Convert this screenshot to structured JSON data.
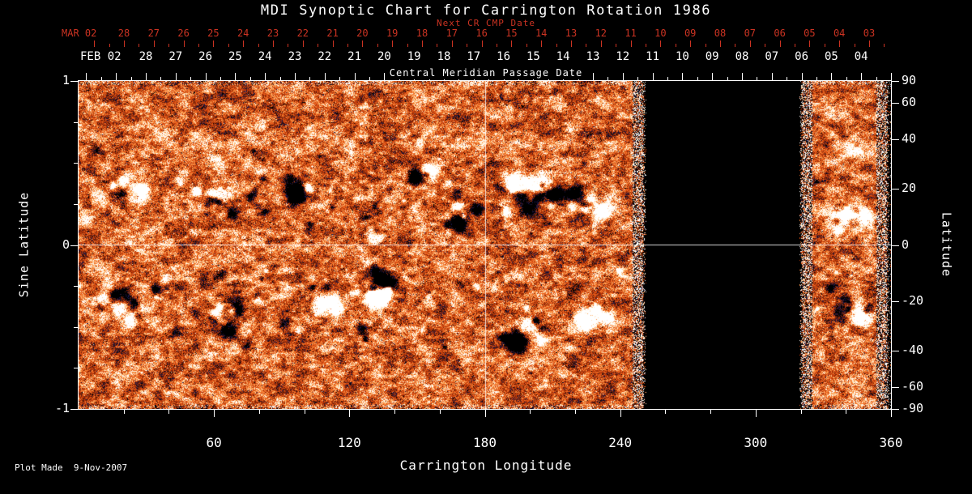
{
  "title": "MDI Synoptic Chart for Carrington Rotation 1986",
  "footer": {
    "plot_made": "Plot Made  9-Nov-2007"
  },
  "colors": {
    "background": "#000000",
    "foreground": "#ffffff",
    "secondary_axis_red": "#cc3322"
  },
  "chart_data": {
    "type": "heatmap",
    "title": "MDI Synoptic Chart for Carrington Rotation 1986",
    "description": "Solar photospheric magnetic field synoptic map for Carrington rotation 1986; mottled orange/red background with bright white positive-polarity and black/blue negative-polarity active regions; black vertical bands are missing data.",
    "xlabel": "Carrington Longitude",
    "x_range": [
      0,
      360
    ],
    "x_ticks": [
      "60",
      "120",
      "180",
      "240",
      "300",
      "360"
    ],
    "x_tick_values": [
      60,
      120,
      180,
      240,
      300,
      360
    ],
    "x_minor_step_deg": 20,
    "ylabel_left": "Sine Latitude",
    "y_left_ticks": [
      "1",
      "0",
      "-1"
    ],
    "y_left_values": [
      1,
      0,
      -1
    ],
    "y_left_minor_values": [
      0.75,
      0.5,
      0.25,
      -0.25,
      -0.5,
      -0.75
    ],
    "ylabel_right": "Latitude",
    "y_right_ticks": [
      "90",
      "60",
      "40",
      "20",
      "0",
      "-20",
      "-40",
      "-60",
      "-90"
    ],
    "y_right_values": [
      90,
      60,
      40,
      20,
      0,
      -20,
      -40,
      -60,
      -90
    ],
    "top_axis": {
      "label": "Next CR CMP Date",
      "month_label": "MAR 02",
      "day_ticks": [
        "28",
        "27",
        "26",
        "25",
        "24",
        "23",
        "22",
        "21",
        "20",
        "19",
        "18",
        "17",
        "16",
        "15",
        "14",
        "13",
        "12",
        "11",
        "10",
        "09",
        "08",
        "07",
        "06",
        "05",
        "04",
        "03"
      ]
    },
    "cmp_axis": {
      "label": "Central Meridian Passage Date",
      "month_label": "FEB 02",
      "day_ticks": [
        "28",
        "27",
        "26",
        "25",
        "24",
        "23",
        "22",
        "21",
        "20",
        "19",
        "18",
        "17",
        "16",
        "15",
        "14",
        "13",
        "12",
        "11",
        "10",
        "09",
        "08",
        "07",
        "06",
        "05",
        "04"
      ]
    },
    "reference_lines": {
      "longitude": 180,
      "sine_latitude": 0
    },
    "data_gaps_longitude_deg": [
      [
        250.5,
        320
      ],
      [
        358.5,
        360
      ]
    ],
    "active_regions": [
      {
        "lon": 19,
        "sin_lat": 0.33,
        "spread": 50,
        "blobs": 10,
        "size": 6,
        "white_fraction": 0.5
      },
      {
        "lon": 58,
        "sin_lat": 0.27,
        "spread": 55,
        "blobs": 12,
        "size": 6,
        "white_fraction": 0.55
      },
      {
        "lon": 99,
        "sin_lat": 0.31,
        "spread": 35,
        "blobs": 6,
        "size": 5,
        "white_fraction": 0.3
      },
      {
        "lon": 133,
        "sin_lat": 0.07,
        "spread": 25,
        "blobs": 4,
        "size": 5,
        "white_fraction": 0.8
      },
      {
        "lon": 152,
        "sin_lat": 0.45,
        "spread": 30,
        "blobs": 5,
        "size": 4,
        "white_fraction": 0.6
      },
      {
        "lon": 170,
        "sin_lat": 0.18,
        "spread": 40,
        "blobs": 6,
        "size": 5,
        "white_fraction": 0.4
      },
      {
        "lon": 199,
        "sin_lat": 0.3,
        "spread": 70,
        "blobs": 14,
        "size": 7,
        "white_fraction": 0.5
      },
      {
        "lon": 227,
        "sin_lat": 0.25,
        "spread": 45,
        "blobs": 9,
        "size": 6,
        "white_fraction": 0.7
      },
      {
        "lon": 19,
        "sin_lat": -0.38,
        "spread": 60,
        "blobs": 13,
        "size": 7,
        "white_fraction": 0.55
      },
      {
        "lon": 64,
        "sin_lat": -0.45,
        "spread": 55,
        "blobs": 10,
        "size": 6,
        "white_fraction": 0.6
      },
      {
        "lon": 110,
        "sin_lat": -0.32,
        "spread": 45,
        "blobs": 8,
        "size": 6,
        "white_fraction": 0.4
      },
      {
        "lon": 131,
        "sin_lat": -0.28,
        "spread": 50,
        "blobs": 11,
        "size": 7,
        "white_fraction": 0.45
      },
      {
        "lon": 196,
        "sin_lat": -0.52,
        "spread": 55,
        "blobs": 11,
        "size": 6,
        "white_fraction": 0.35
      },
      {
        "lon": 228,
        "sin_lat": -0.45,
        "spread": 40,
        "blobs": 8,
        "size": 6,
        "white_fraction": 0.7
      },
      {
        "lon": 340,
        "sin_lat": 0.16,
        "spread": 45,
        "blobs": 10,
        "size": 6,
        "white_fraction": 0.55
      },
      {
        "lon": 344,
        "sin_lat": -0.4,
        "spread": 45,
        "blobs": 9,
        "size": 6,
        "white_fraction": 0.5
      }
    ]
  }
}
